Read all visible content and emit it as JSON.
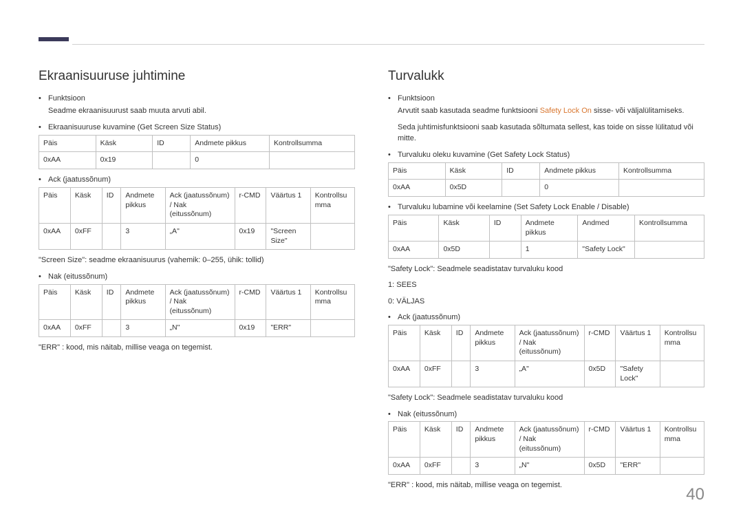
{
  "pageNumber": "40",
  "left": {
    "heading": "Ekraanisuuruse juhtimine",
    "b1": "Funktsioon",
    "b1sub": "Seadme ekraanisuurust saab muuta arvuti abil.",
    "b2": "Ekraanisuuruse kuvamine (Get Screen Size Status)",
    "t1": {
      "h": [
        "Päis",
        "Käsk",
        "ID",
        "Andmete pikkus",
        "Kontrollsumma"
      ],
      "r": [
        "0xAA",
        "0x19",
        "",
        "0",
        ""
      ]
    },
    "b3": "Ack (jaatussõnum)",
    "t2": {
      "h": [
        "Päis",
        "Käsk",
        "ID",
        "Andmete pikkus",
        "Ack (jaatussõnum) / Nak (eitussõnum)",
        "r-CMD",
        "Väärtus 1",
        "Kontrollsumma"
      ],
      "r": [
        "0xAA",
        "0xFF",
        "",
        "3",
        "„A\"",
        "0x19",
        "\"Screen Size\"",
        ""
      ]
    },
    "n1": "\"Screen Size\": seadme ekraanisuurus (vahemik: 0–255, ühik: tollid)",
    "b4": "Nak (eitussõnum)",
    "t3": {
      "h": [
        "Päis",
        "Käsk",
        "ID",
        "Andmete pikkus",
        "Ack (jaatussõnum) / Nak (eitussõnum)",
        "r-CMD",
        "Väärtus 1",
        "Kontrollsumma"
      ],
      "r": [
        "0xAA",
        "0xFF",
        "",
        "3",
        "„N\"",
        "0x19",
        "\"ERR\"",
        ""
      ]
    },
    "n2": "\"ERR\" : kood, mis näitab, millise veaga on tegemist."
  },
  "right": {
    "heading": "Turvalukk",
    "b1": "Funktsioon",
    "b1sub_a": "Arvutit saab kasutada seadme funktsiooni ",
    "b1sub_orange": "Safety Lock On",
    "b1sub_b": " sisse- või väljalülitamiseks.",
    "b1sub2": "Seda juhtimisfunktsiooni saab kasutada sõltumata sellest, kas toide on sisse lülitatud või mitte.",
    "b2": "Turvaluku oleku kuvamine (Get Safety Lock Status)",
    "t1": {
      "h": [
        "Päis",
        "Käsk",
        "ID",
        "Andmete pikkus",
        "Kontrollsumma"
      ],
      "r": [
        "0xAA",
        "0x5D",
        "",
        "0",
        ""
      ]
    },
    "b3": "Turvaluku lubamine või keelamine (Set Safety Lock Enable / Disable)",
    "t2": {
      "h": [
        "Päis",
        "Käsk",
        "ID",
        "Andmete pikkus",
        "Andmed",
        "Kontrollsumma"
      ],
      "r": [
        "0xAA",
        "0x5D",
        "",
        "1",
        "\"Safety Lock\"",
        ""
      ]
    },
    "n1": "\"Safety Lock\": Seadmele seadistatav turvaluku kood",
    "n2": "1: SEES",
    "n3": "0: VÄLJAS",
    "b4": "Ack (jaatussõnum)",
    "t3": {
      "h": [
        "Päis",
        "Käsk",
        "ID",
        "Andmete pikkus",
        "Ack (jaatussõnum) / Nak (eitussõnum)",
        "r-CMD",
        "Väärtus 1",
        "Kontrollsumma"
      ],
      "r": [
        "0xAA",
        "0xFF",
        "",
        "3",
        "„A\"",
        "0x5D",
        "\"Safety Lock\"",
        ""
      ]
    },
    "n4": "\"Safety Lock\": Seadmele seadistatav turvaluku kood",
    "b5": "Nak (eitussõnum)",
    "t4": {
      "h": [
        "Päis",
        "Käsk",
        "ID",
        "Andmete pikkus",
        "Ack (jaatussõnum) / Nak (eitussõnum)",
        "r-CMD",
        "Väärtus 1",
        "Kontrollsumma"
      ],
      "r": [
        "0xAA",
        "0xFF",
        "",
        "3",
        "„N\"",
        "0x5D",
        "\"ERR\"",
        ""
      ]
    },
    "n5": "\"ERR\" : kood, mis näitab, millise veaga on tegemist."
  }
}
